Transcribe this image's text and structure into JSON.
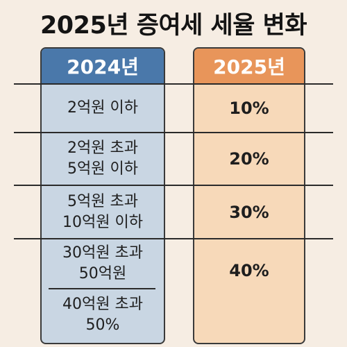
{
  "title": "2025년 증여세 세율 변화",
  "columns": {
    "left_header": "2024년",
    "right_header": "2025년"
  },
  "rows": [
    {
      "left_lines": [
        "2억원 이하"
      ],
      "right": "10%"
    },
    {
      "left_lines": [
        "2억원 초과",
        "5억원 이하"
      ],
      "right": "20%"
    },
    {
      "left_lines": [
        "5억원 초과",
        "10억원 이하"
      ],
      "right": "30%"
    },
    {
      "left_lines": [
        "30억원 초과",
        "50억원"
      ],
      "right": "40%"
    },
    {
      "left_lines": [
        "40억원 초과",
        "50%"
      ]
    }
  ],
  "colors": {
    "background": "#f6ede3",
    "left_header": "#4a78aa",
    "left_body": "#c9d6e3",
    "right_header": "#e8955a",
    "right_body": "#f7d9b9"
  }
}
